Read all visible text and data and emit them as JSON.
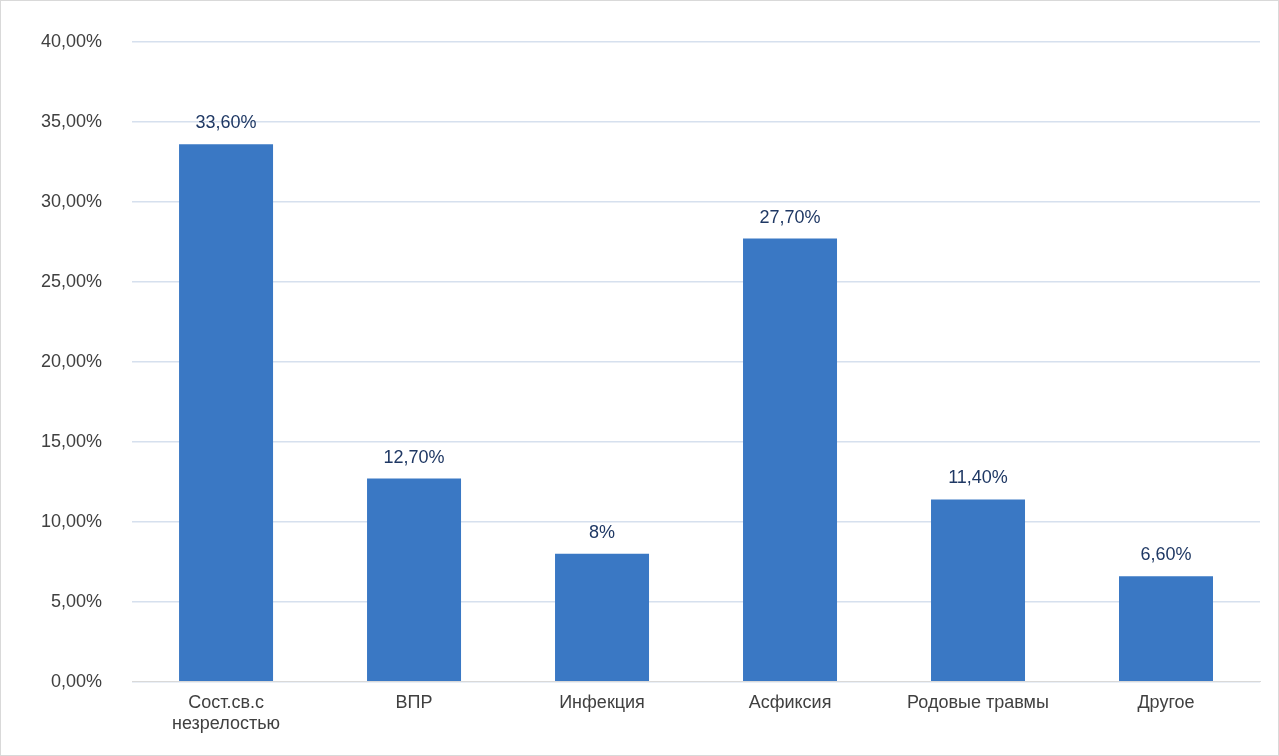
{
  "chart_data": {
    "type": "bar",
    "categories": [
      "Сост.св.с незрелостью",
      "ВПР",
      "Инфекция",
      "Асфиксия",
      "Родовые травмы",
      "Другое"
    ],
    "values": [
      33.6,
      12.7,
      8,
      27.7,
      11.4,
      6.6
    ],
    "value_labels": [
      "33,60%",
      "12,70%",
      "8%",
      "27,70%",
      "11,40%",
      "6,60%"
    ],
    "color": "#3a78c4",
    "ylim": [
      0,
      40
    ],
    "yticks": [
      {
        "value": 0,
        "label": "0,00%"
      },
      {
        "value": 5,
        "label": "5,00%"
      },
      {
        "value": 10,
        "label": "10,00%"
      },
      {
        "value": 15,
        "label": "15,00%"
      },
      {
        "value": 20,
        "label": "20,00%"
      },
      {
        "value": 25,
        "label": "25,00%"
      },
      {
        "value": 30,
        "label": "30,00%"
      },
      {
        "value": 35,
        "label": "35,00%"
      },
      {
        "value": 40,
        "label": "40,00%"
      }
    ],
    "grid": "y",
    "legend": false
  }
}
